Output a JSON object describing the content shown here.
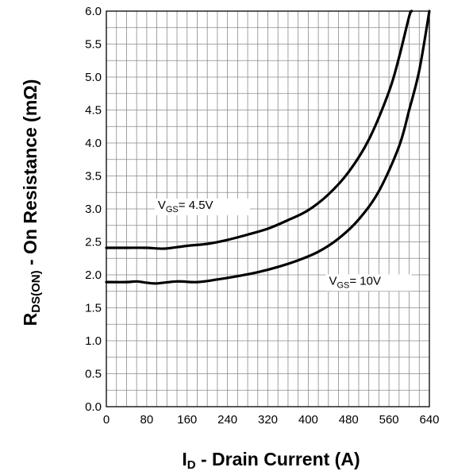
{
  "chart_data": {
    "type": "line",
    "xlabel": {
      "main": "I",
      "sub": "D",
      "rest": " - Drain Current (A)"
    },
    "ylabel": {
      "main": "R",
      "sub": "DS(ON)",
      "rest": " - On Resistance (mΩ)"
    },
    "xlim": [
      0,
      640
    ],
    "ylim": [
      0,
      6.0
    ],
    "x_ticks": [
      "0",
      "80",
      "160",
      "240",
      "320",
      "400",
      "480",
      "560",
      "640"
    ],
    "y_ticks": [
      "0.0",
      "0.5",
      "1.0",
      "1.5",
      "2.0",
      "2.5",
      "3.0",
      "3.5",
      "4.0",
      "4.5",
      "5.0",
      "5.5",
      "6.0"
    ],
    "grid": true,
    "series": [
      {
        "label": {
          "main": "V",
          "sub": "GS",
          "rest": "= 4.5V"
        },
        "color": "#000000",
        "points": [
          [
            0,
            2.41
          ],
          [
            40,
            2.41
          ],
          [
            80,
            2.41
          ],
          [
            100,
            2.4
          ],
          [
            120,
            2.4
          ],
          [
            160,
            2.44
          ],
          [
            200,
            2.47
          ],
          [
            240,
            2.53
          ],
          [
            280,
            2.61
          ],
          [
            320,
            2.7
          ],
          [
            360,
            2.83
          ],
          [
            400,
            2.98
          ],
          [
            440,
            3.22
          ],
          [
            480,
            3.56
          ],
          [
            520,
            4.05
          ],
          [
            560,
            4.78
          ],
          [
            580,
            5.3
          ],
          [
            600,
            5.92
          ],
          [
            605,
            6.0
          ]
        ]
      },
      {
        "label": {
          "main": "V",
          "sub": "GS",
          "rest": "= 10V"
        },
        "color": "#000000",
        "points": [
          [
            0,
            1.89
          ],
          [
            40,
            1.89
          ],
          [
            60,
            1.9
          ],
          [
            80,
            1.88
          ],
          [
            100,
            1.87
          ],
          [
            140,
            1.9
          ],
          [
            180,
            1.89
          ],
          [
            220,
            1.93
          ],
          [
            260,
            1.98
          ],
          [
            300,
            2.04
          ],
          [
            340,
            2.12
          ],
          [
            380,
            2.22
          ],
          [
            420,
            2.35
          ],
          [
            460,
            2.55
          ],
          [
            500,
            2.84
          ],
          [
            540,
            3.27
          ],
          [
            580,
            3.95
          ],
          [
            600,
            4.5
          ],
          [
            620,
            5.1
          ],
          [
            640,
            6.0
          ]
        ]
      }
    ]
  }
}
